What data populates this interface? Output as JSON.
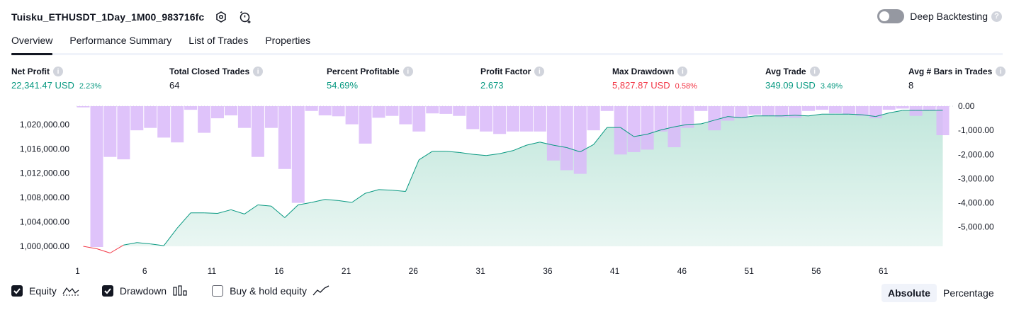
{
  "header": {
    "strategy_name": "Tuisku_ETHUSDT_1Day_1M00_983716fc",
    "settings_icon": "settings-icon",
    "alert_icon": "add-alert-icon",
    "deep_backtesting_label": "Deep Backtesting",
    "deep_backtesting_enabled": false
  },
  "tabs": [
    {
      "label": "Overview",
      "active": true
    },
    {
      "label": "Performance Summary",
      "active": false
    },
    {
      "label": "List of Trades",
      "active": false
    },
    {
      "label": "Properties",
      "active": false
    }
  ],
  "metrics": {
    "net_profit": {
      "label": "Net Profit",
      "value": "22,341.47 USD",
      "percent": "2.23%"
    },
    "total_closed_trades": {
      "label": "Total Closed Trades",
      "value": "64"
    },
    "percent_profitable": {
      "label": "Percent Profitable",
      "value": "54.69%"
    },
    "profit_factor": {
      "label": "Profit Factor",
      "value": "2.673"
    },
    "max_drawdown": {
      "label": "Max Drawdown",
      "value": "5,827.87 USD",
      "percent": "0.58%"
    },
    "avg_trade": {
      "label": "Avg Trade",
      "value": "349.09 USD",
      "percent": "3.49%"
    },
    "avg_bars": {
      "label": "Avg # Bars in Trades",
      "value": "8"
    }
  },
  "colors": {
    "green": "#089981",
    "red": "#f23645",
    "drawdown_bar": "#d9b8f9",
    "equity_fill": "#c2e7dc"
  },
  "legend": {
    "equity": {
      "label": "Equity",
      "checked": true
    },
    "drawdown": {
      "label": "Drawdown",
      "checked": true
    },
    "buy_hold": {
      "label": "Buy & hold equity",
      "checked": false
    }
  },
  "scale_mode": {
    "absolute_label": "Absolute",
    "percentage_label": "Percentage",
    "selected": "Absolute"
  },
  "chart_data": {
    "type": "area",
    "x_ticks": [
      "1",
      "6",
      "11",
      "16",
      "21",
      "26",
      "31",
      "36",
      "41",
      "46",
      "51",
      "56",
      "61"
    ],
    "left_axis_ticks": [
      "1,020,000.00",
      "1,016,000.00",
      "1,012,000.00",
      "1,008,000.00",
      "1,004,000.00",
      "1,000,000.00"
    ],
    "right_axis_ticks": [
      "0.00",
      "-1,000.00",
      "-2,000.00",
      "-3,000.00",
      "-4,000.00",
      "-5,000.00"
    ],
    "left_ylim": [
      1000000,
      1023000
    ],
    "right_ylim": [
      -5800,
      0
    ],
    "series": [
      {
        "name": "Equity",
        "axis": "left",
        "x": [
          1,
          2,
          3,
          4,
          5,
          6,
          7,
          8,
          9,
          10,
          11,
          12,
          13,
          14,
          15,
          16,
          17,
          18,
          19,
          20,
          21,
          22,
          23,
          24,
          25,
          26,
          27,
          28,
          29,
          30,
          31,
          32,
          33,
          34,
          35,
          36,
          37,
          38,
          39,
          40,
          41,
          42,
          43,
          44,
          45,
          46,
          47,
          48,
          49,
          50,
          51,
          52,
          53,
          54,
          55,
          56,
          57,
          58,
          59,
          60,
          61,
          62,
          63,
          64,
          65
        ],
        "values": [
          1000000,
          999600,
          998900,
          1000200,
          1000600,
          1000400,
          1000100,
          1003000,
          1005500,
          1005500,
          1005400,
          1006000,
          1005300,
          1006800,
          1006600,
          1004700,
          1006800,
          1007200,
          1007700,
          1007500,
          1007200,
          1008700,
          1009300,
          1009200,
          1009000,
          1014200,
          1015600,
          1015600,
          1015400,
          1015100,
          1014900,
          1015200,
          1015700,
          1016600,
          1017100,
          1016600,
          1016200,
          1015500,
          1016700,
          1019500,
          1019500,
          1018000,
          1018400,
          1019100,
          1019600,
          1020000,
          1020100,
          1020700,
          1021300,
          1021100,
          1021400,
          1021400,
          1021400,
          1021500,
          1021400,
          1021700,
          1021700,
          1021700,
          1021600,
          1021300,
          1021900,
          1022300,
          1022300,
          1022300,
          1022341
        ]
      },
      {
        "name": "Drawdown",
        "axis": "right",
        "x": [
          1,
          2,
          3,
          4,
          5,
          6,
          7,
          8,
          9,
          10,
          11,
          12,
          13,
          14,
          15,
          16,
          17,
          18,
          19,
          20,
          21,
          22,
          23,
          24,
          25,
          26,
          27,
          28,
          29,
          30,
          31,
          32,
          33,
          34,
          35,
          36,
          37,
          38,
          39,
          40,
          41,
          42,
          43,
          44,
          45,
          46,
          47,
          48,
          49,
          50,
          51,
          52,
          53,
          54,
          55,
          56,
          57,
          58,
          59,
          60,
          61,
          62,
          63,
          64,
          65
        ],
        "values": [
          -50,
          -5828,
          -2100,
          -2200,
          -1000,
          -900,
          -1300,
          -1500,
          -150,
          -1100,
          -500,
          -380,
          -900,
          -2100,
          -900,
          -2600,
          -4000,
          -200,
          -380,
          -420,
          -750,
          -1550,
          -480,
          -400,
          -750,
          -1050,
          -300,
          -320,
          -400,
          -950,
          -1050,
          -1150,
          -1050,
          -1050,
          -1050,
          -2250,
          -2650,
          -2800,
          -1000,
          -200,
          -2000,
          -1900,
          -1800,
          -1050,
          -1700,
          -900,
          -200,
          -1000,
          -600,
          -500,
          -350,
          -400,
          -450,
          -480,
          -200,
          -150,
          -300,
          -350,
          -400,
          -500,
          -150,
          -100,
          -400,
          -200,
          -1200
        ]
      }
    ]
  }
}
